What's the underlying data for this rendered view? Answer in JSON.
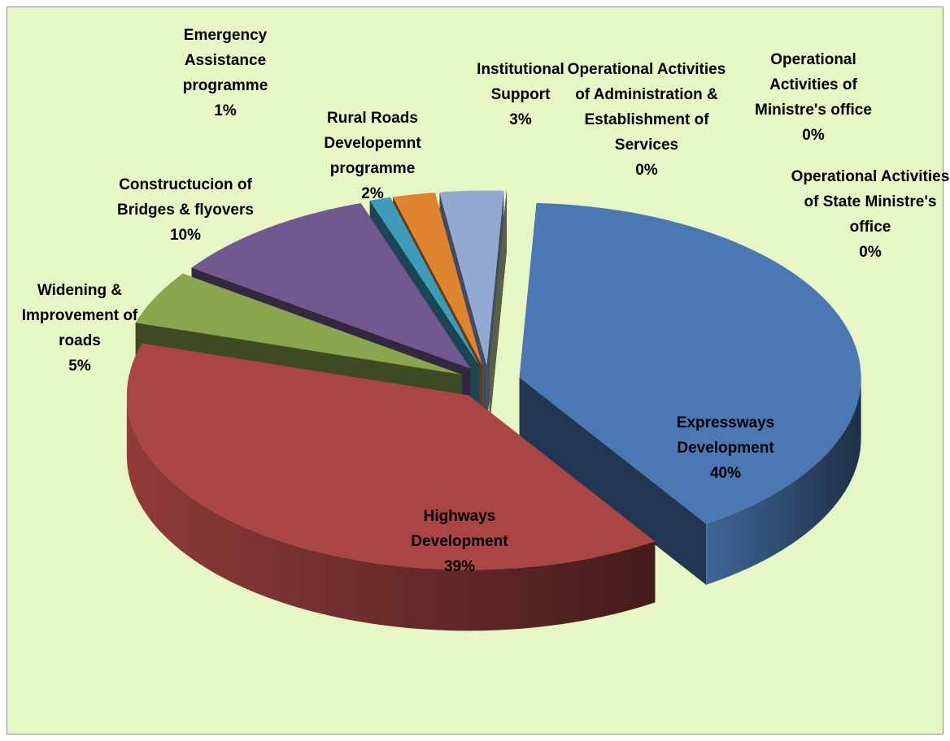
{
  "chart_data": {
    "type": "pie",
    "categories": [
      "Expressways Development",
      "Highways Development",
      "Widening & Improvement of roads",
      "Constructucion of Bridges & flyovers",
      "Emergency Assistance programme",
      "Rural Roads Developemnt programme",
      "Institutional Support",
      "Operational Activities of Administration & Establishment of Services",
      "Operational Activities of Ministre's office",
      "Operational Activities of State Ministre's office"
    ],
    "values": [
      40,
      39,
      5,
      10,
      1,
      2,
      3,
      0,
      0,
      0
    ],
    "value_labels": [
      "40%",
      "39%",
      "5%",
      "10%",
      "1%",
      "2%",
      "3%",
      "0%",
      "0%",
      "0%"
    ],
    "colors": [
      "#4a78b2",
      "#a94543",
      "#89a54e",
      "#71588f",
      "#3e9bb9",
      "#e0842f",
      "#93a9d2",
      "#b9cde5",
      "#d99694",
      "#c3d69b"
    ]
  }
}
